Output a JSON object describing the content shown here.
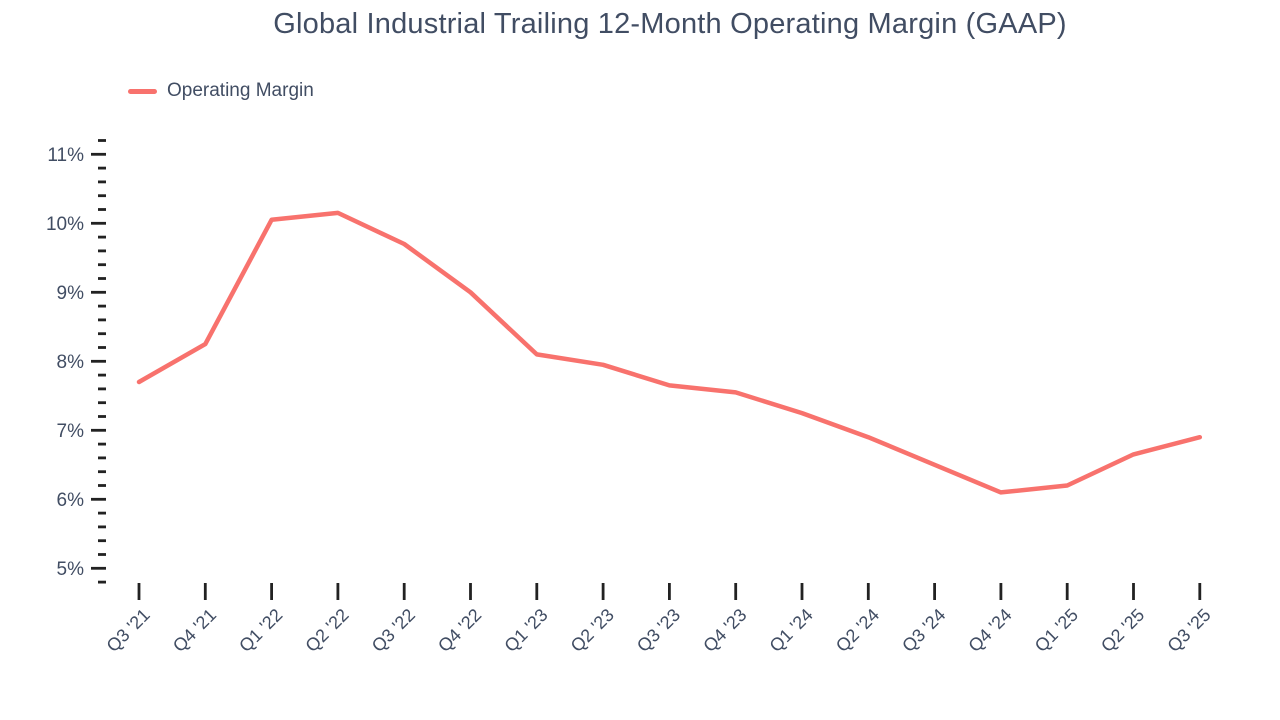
{
  "chart_data": {
    "type": "line",
    "title": "Global Industrial Trailing 12-Month Operating Margin (GAAP)",
    "categories": [
      "Q3 '21",
      "Q4 '21",
      "Q1 '22",
      "Q2 '22",
      "Q3 '22",
      "Q4 '22",
      "Q1 '23",
      "Q2 '23",
      "Q3 '23",
      "Q4 '23",
      "Q1 '24",
      "Q2 '24",
      "Q3 '24",
      "Q4 '24",
      "Q1 '25",
      "Q2 '25",
      "Q3 '25"
    ],
    "series": [
      {
        "name": "Operating Margin",
        "values": [
          7.7,
          8.25,
          10.05,
          10.15,
          9.7,
          9.0,
          8.1,
          7.95,
          7.65,
          7.55,
          7.25,
          6.9,
          6.5,
          6.1,
          6.2,
          6.65,
          6.9
        ]
      }
    ],
    "xlabel": "",
    "ylabel": "",
    "ylim": [
      4.8,
      11.2
    ],
    "y_tick_values": [
      5,
      6,
      7,
      8,
      9,
      10,
      11
    ],
    "y_tick_labels": [
      "5%",
      "6%",
      "7%",
      "8%",
      "9%",
      "10%",
      "11%"
    ],
    "y_minor_tick_step": 0.2,
    "grid": "off",
    "legend_position": "top-left",
    "colors": {
      "line": "#F8726D",
      "text": "#414D63",
      "tick": "#222222",
      "background": "#FFFFFF"
    }
  }
}
